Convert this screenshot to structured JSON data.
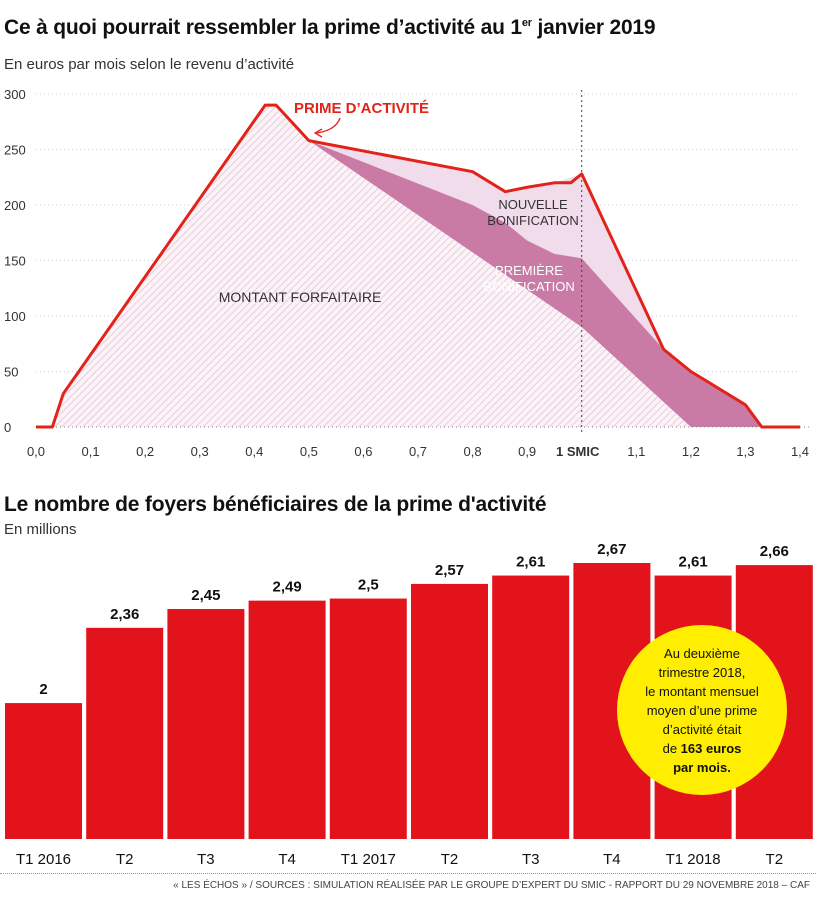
{
  "chart_data": [
    {
      "type": "area",
      "title_main": "Ce à quoi pourrait ressembler la prime d’activité au 1",
      "title_sup": "er",
      "title_end": " janvier 2019",
      "subtitle": "En euros par mois selon le revenu d’activité",
      "xlabel": "",
      "ylabel": "",
      "xlim": [
        0,
        1.4
      ],
      "ylim": [
        0,
        300
      ],
      "x_ticks": [
        0.0,
        0.1,
        0.2,
        0.3,
        0.4,
        0.5,
        0.6,
        0.7,
        0.8,
        0.9,
        1.1,
        1.2,
        1.3,
        1.4
      ],
      "x_tick_labels": [
        "0,0",
        "0,1",
        "0,2",
        "0,3",
        "0,4",
        "0,5",
        "0,6",
        "0,7",
        "0,8",
        "0,9",
        "1,1",
        "1,2",
        "1,3",
        "1,4"
      ],
      "smic_x": 1.0,
      "smic_label": "1 SMIC",
      "y_ticks": [
        0,
        50,
        100,
        150,
        200,
        250,
        300
      ],
      "series": [
        {
          "name": "MONTANT FORFAITAIRE",
          "color": "#e6bcd2",
          "points": [
            [
              0.0,
              0
            ],
            [
              0.03,
              0
            ],
            [
              0.05,
              30
            ],
            [
              0.42,
              290
            ],
            [
              0.44,
              290
            ],
            [
              0.5,
              258
            ],
            [
              1.0,
              90
            ],
            [
              1.2,
              0
            ],
            [
              1.4,
              0
            ]
          ]
        },
        {
          "name": "PREMIÈRE BONIFICATION",
          "color": "#c97ba6",
          "points": [
            [
              0.5,
              258
            ],
            [
              0.8,
              200
            ],
            [
              0.86,
              184
            ],
            [
              0.9,
              168
            ],
            [
              0.95,
              156
            ],
            [
              1.0,
              152
            ],
            [
              1.15,
              70
            ],
            [
              1.2,
              50
            ],
            [
              1.3,
              20
            ],
            [
              1.33,
              0
            ]
          ]
        },
        {
          "name": "NOUVELLE BONIFICATION",
          "color": "#f0dceb",
          "points": [
            [
              0.5,
              258
            ],
            [
              0.8,
              230
            ],
            [
              0.86,
              212
            ],
            [
              0.9,
              216
            ],
            [
              0.95,
              220
            ],
            [
              1.0,
              228
            ],
            [
              1.15,
              70
            ],
            [
              1.2,
              50
            ],
            [
              1.3,
              20
            ],
            [
              1.33,
              0
            ]
          ]
        },
        {
          "name": "PRIME D’ACTIVITÉ",
          "color": "#e2231a",
          "points": [
            [
              0.0,
              0
            ],
            [
              0.03,
              0
            ],
            [
              0.05,
              30
            ],
            [
              0.42,
              290
            ],
            [
              0.44,
              290
            ],
            [
              0.5,
              258
            ],
            [
              0.8,
              230
            ],
            [
              0.86,
              212
            ],
            [
              0.9,
              216
            ],
            [
              0.95,
              220
            ],
            [
              0.98,
              220
            ],
            [
              1.0,
              228
            ],
            [
              1.15,
              70
            ],
            [
              1.2,
              50
            ],
            [
              1.3,
              20
            ],
            [
              1.33,
              0
            ],
            [
              1.4,
              0
            ]
          ]
        }
      ]
    },
    {
      "type": "bar",
      "title": "Le nombre de foyers bénéficiaires de la prime d'activité",
      "subtitle": "En millions",
      "categories": [
        "T1 2016",
        "T2",
        "T3",
        "T4",
        "T1 2017",
        "T2",
        "T3",
        "T4",
        "T1 2018",
        "T2"
      ],
      "values": [
        2,
        2.36,
        2.45,
        2.49,
        2.5,
        2.57,
        2.61,
        2.67,
        2.61,
        2.66
      ],
      "value_labels": [
        "2",
        "2,36",
        "2,45",
        "2,49",
        "2,5",
        "2,57",
        "2,61",
        "2,67",
        "2,61",
        "2,66"
      ],
      "color": "#e2131a",
      "ylim": [
        1.35,
        2.67
      ]
    }
  ],
  "callout": {
    "line1": "Au deuxième",
    "line2": "trimestre 2018,",
    "line3": "le montant mensuel",
    "line4": "moyen d’une prime",
    "line5": "d’activité était",
    "line6_pre": "de ",
    "line6_bold": "163 euros",
    "line7_bold": "par mois."
  },
  "footer": "« LES ÉCHOS » / SOURCES : SIMULATION RÉALISÉE PAR LE GROUPE D’EXPERT DU SMIC - RAPPORT DU 29 NOVEMBRE 2018 – CAF"
}
